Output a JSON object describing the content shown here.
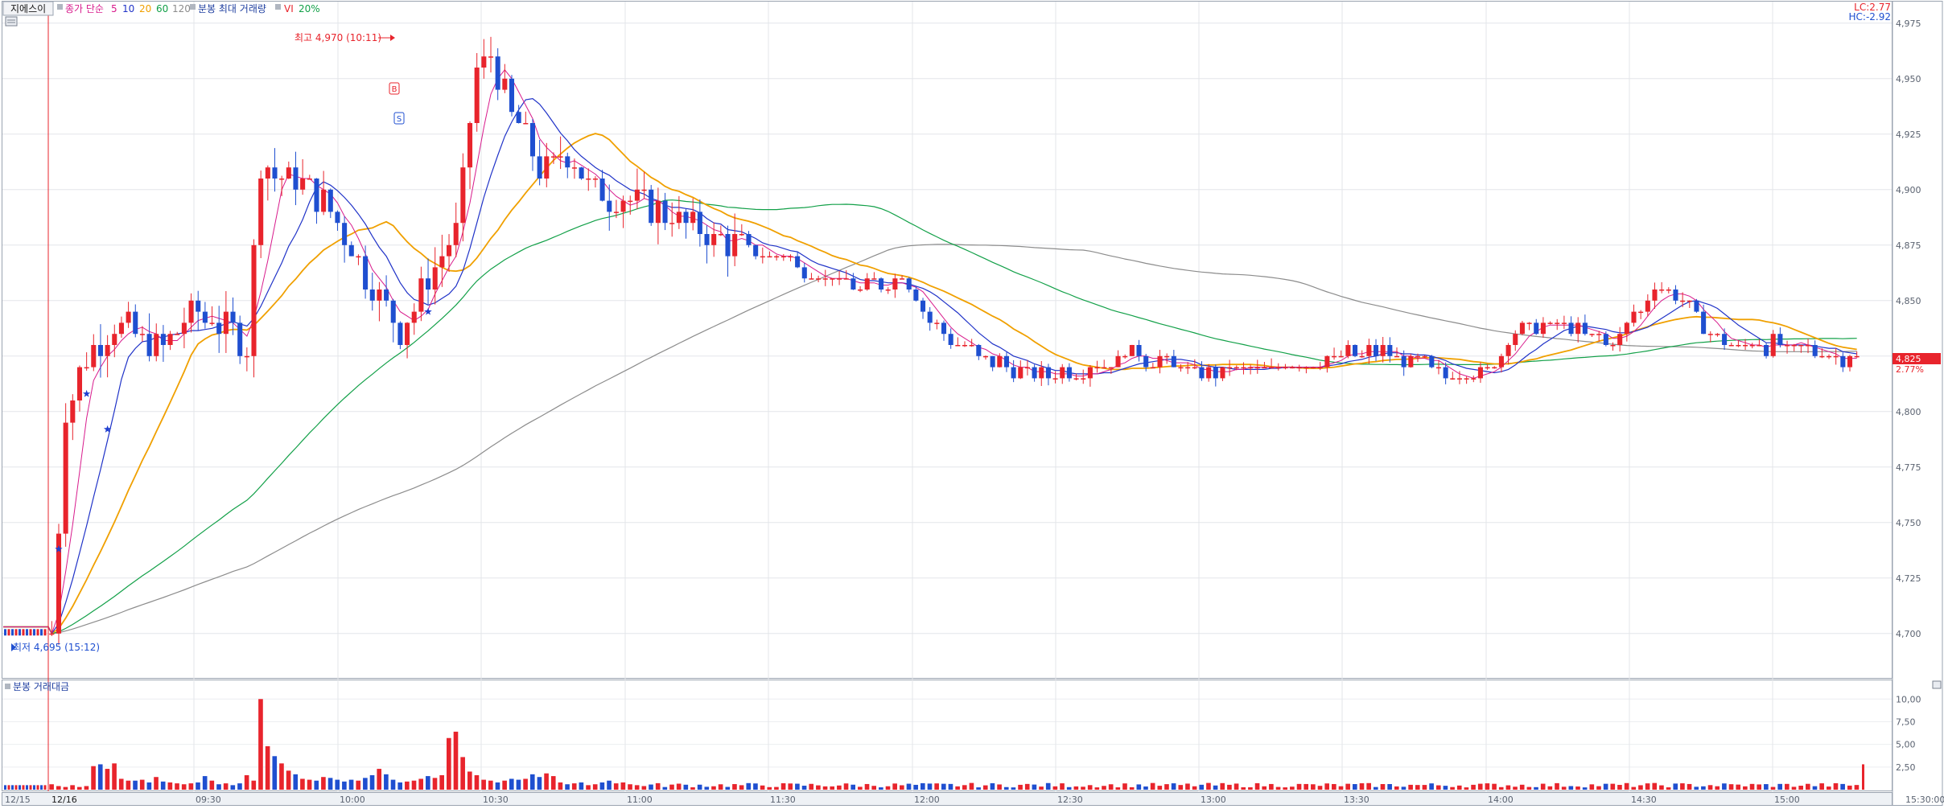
{
  "header": {
    "name_tab": "지에스이",
    "ma_label": "종가 단순",
    "ma_periods": [
      "5",
      "10",
      "20",
      "60",
      "120"
    ],
    "volume_label": "분봉 최대 거래량",
    "vi_label": "VI",
    "vi_value": "20%"
  },
  "right_top": {
    "lc": "LC:2.77",
    "hc": "HC:-2.92"
  },
  "annotations": {
    "high": "최고 4,970 (10:11)",
    "low": "최저 4,695 (15:12)",
    "buy_marker": "B",
    "sell_marker": "S"
  },
  "current_price": {
    "value": "4,825",
    "change": "2.77%"
  },
  "volume_panel": {
    "title": "분봉 거래대금"
  },
  "colors": {
    "up": "#e8242c",
    "down": "#1f4fd0",
    "ma5": "#d81b8c",
    "ma10": "#2033c8",
    "ma20": "#f0a000",
    "ma60": "#12a048",
    "ma120": "#8c8c8c",
    "vi": "#e8242c"
  },
  "chart_data": {
    "type": "candlestick",
    "session": "12/16",
    "x_ticks": [
      "12/15",
      "12/16",
      "09:30",
      "10:00",
      "10:30",
      "11:00",
      "11:30",
      "12:00",
      "12:30",
      "13:00",
      "13:30",
      "14:00",
      "14:30",
      "15:00",
      "15:30:00"
    ],
    "price_axis": {
      "ylim": [
        4680,
        4980
      ],
      "ticks": [
        "4,975",
        "4,950",
        "4,925",
        "4,900",
        "4,875",
        "4,850",
        "4,825",
        "4,800",
        "4,775",
        "4,750",
        "4,725",
        "4,700"
      ]
    },
    "volume_axis": {
      "ylim": [
        0,
        11
      ],
      "ticks": [
        "10,00",
        "7,50",
        "5,00",
        "2,50"
      ]
    },
    "price_path": [
      [
        0,
        4700
      ],
      [
        2,
        4800
      ],
      [
        5,
        4825
      ],
      [
        9,
        4840
      ],
      [
        12,
        4835
      ],
      [
        16,
        4828
      ],
      [
        20,
        4845
      ],
      [
        24,
        4840
      ],
      [
        28,
        4830
      ],
      [
        30,
        4910
      ],
      [
        34,
        4905
      ],
      [
        38,
        4898
      ],
      [
        42,
        4880
      ],
      [
        46,
        4855
      ],
      [
        50,
        4835
      ],
      [
        54,
        4860
      ],
      [
        58,
        4880
      ],
      [
        61,
        4955
      ],
      [
        63,
        4960
      ],
      [
        66,
        4935
      ],
      [
        70,
        4910
      ],
      [
        74,
        4915
      ],
      [
        78,
        4900
      ],
      [
        82,
        4895
      ],
      [
        86,
        4892
      ],
      [
        90,
        4888
      ],
      [
        94,
        4880
      ],
      [
        98,
        4875
      ],
      [
        104,
        4870
      ],
      [
        110,
        4862
      ],
      [
        116,
        4855
      ],
      [
        122,
        4860
      ],
      [
        126,
        4840
      ],
      [
        130,
        4830
      ],
      [
        136,
        4822
      ],
      [
        142,
        4817
      ],
      [
        148,
        4820
      ],
      [
        154,
        4826
      ],
      [
        160,
        4822
      ],
      [
        166,
        4818
      ],
      [
        172,
        4820
      ],
      [
        178,
        4820
      ],
      [
        184,
        4825
      ],
      [
        190,
        4827
      ],
      [
        196,
        4822
      ],
      [
        200,
        4816
      ],
      [
        206,
        4820
      ],
      [
        210,
        4835
      ],
      [
        214,
        4840
      ],
      [
        218,
        4838
      ],
      [
        224,
        4830
      ],
      [
        230,
        4855
      ],
      [
        234,
        4850
      ],
      [
        238,
        4835
      ],
      [
        242,
        4830
      ],
      [
        248,
        4830
      ],
      [
        254,
        4826
      ],
      [
        258,
        4825
      ]
    ],
    "volume_series": [
      0.6,
      0.4,
      0.3,
      0.5,
      0.3,
      0.4,
      2.6,
      2.8,
      2.3,
      2.9,
      1.2,
      1.0,
      1.0,
      1.1,
      0.8,
      1.4,
      0.9,
      0.8,
      0.7,
      0.6,
      0.7,
      0.8,
      1.5,
      1.0,
      0.6,
      0.7,
      0.5,
      0.7,
      1.6,
      1.0,
      10.0,
      4.8,
      3.7,
      2.9,
      2.1,
      1.7,
      1.2,
      1.1,
      1.0,
      1.4,
      1.3,
      1.1,
      0.9,
      1.1,
      1.0,
      1.3,
      1.6,
      2.3,
      1.7,
      1.1,
      0.8,
      0.9,
      1.0,
      1.2,
      1.5,
      1.3,
      1.6,
      5.7,
      6.4,
      3.6,
      2.0,
      1.6,
      1.1,
      1.0,
      0.8,
      1.0,
      1.2,
      1.1,
      1.2,
      1.7,
      1.4,
      1.8,
      1.5,
      0.8,
      0.6,
      0.7,
      0.8,
      0.5,
      0.6,
      0.8,
      1.0,
      0.7,
      0.8,
      0.6,
      0.5,
      0.4
    ]
  }
}
